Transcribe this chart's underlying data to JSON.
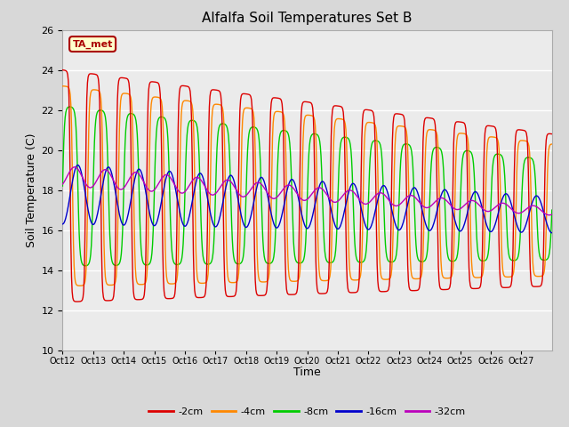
{
  "title": "Alfalfa Soil Temperatures Set B",
  "xlabel": "Time",
  "ylabel": "Soil Temperature (C)",
  "ylim": [
    10,
    26
  ],
  "yticks": [
    10,
    12,
    14,
    16,
    18,
    20,
    22,
    24,
    26
  ],
  "fig_bg_color": "#d8d8d8",
  "plot_bg_color": "#ebebeb",
  "legend_labels": [
    "-2cm",
    "-4cm",
    "-8cm",
    "-16cm",
    "-32cm"
  ],
  "legend_colors": [
    "#dd0000",
    "#ff8800",
    "#00cc00",
    "#0000cc",
    "#bb00bb"
  ],
  "xtick_labels": [
    "Oct 12",
    "Oct 13",
    "Oct 14",
    "Oct 15",
    "Oct 16",
    "Oct 17",
    "Oct 18",
    "Oct 19",
    "Oct 20",
    "Oct 21",
    "Oct 22",
    "Oct 23",
    "Oct 24",
    "Oct 25",
    "Oct 26",
    "Oct 27"
  ],
  "annotation_text": "TA_met",
  "annotation_bg": "#ffffcc",
  "annotation_border": "#aa0000"
}
